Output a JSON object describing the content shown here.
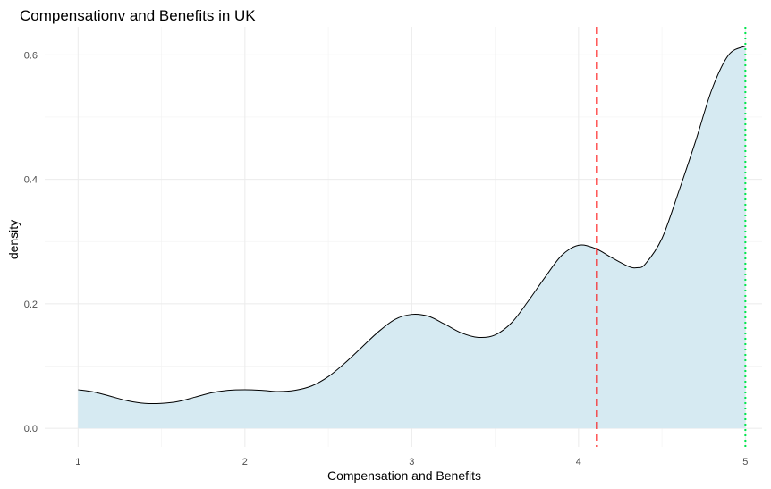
{
  "chart_data": {
    "type": "area",
    "title": "Compensationv and Benefits in  UK",
    "xlabel": "Compensation and Benefits",
    "ylabel": "density",
    "xlim": [
      0.8,
      5.1
    ],
    "ylim": [
      -0.03,
      0.645
    ],
    "x_ticks": [
      1,
      2,
      3,
      4,
      5
    ],
    "y_ticks": [
      0.0,
      0.2,
      0.4,
      0.6
    ],
    "x_tick_labels": [
      "1",
      "2",
      "3",
      "4",
      "5"
    ],
    "y_tick_labels": [
      "0.0",
      "0.2",
      "0.4",
      "0.6"
    ],
    "grid": true,
    "legend": "none",
    "series": [
      {
        "x": [
          1.0,
          1.1,
          1.2,
          1.3,
          1.4,
          1.5,
          1.6,
          1.7,
          1.8,
          1.9,
          2.0,
          2.1,
          2.2,
          2.3,
          2.4,
          2.5,
          2.6,
          2.7,
          2.8,
          2.9,
          3.0,
          3.1,
          3.2,
          3.3,
          3.4,
          3.5,
          3.6,
          3.7,
          3.8,
          3.9,
          4.0,
          4.1,
          4.2,
          4.3,
          4.35,
          4.4,
          4.5,
          4.6,
          4.7,
          4.8,
          4.9,
          5.0
        ],
        "y": [
          0.062,
          0.058,
          0.051,
          0.044,
          0.04,
          0.04,
          0.043,
          0.05,
          0.057,
          0.061,
          0.062,
          0.061,
          0.059,
          0.061,
          0.068,
          0.083,
          0.105,
          0.13,
          0.155,
          0.175,
          0.183,
          0.18,
          0.167,
          0.153,
          0.146,
          0.15,
          0.17,
          0.205,
          0.243,
          0.278,
          0.294,
          0.289,
          0.274,
          0.26,
          0.258,
          0.264,
          0.305,
          0.38,
          0.46,
          0.545,
          0.6,
          0.614
        ],
        "fill": "#d6eaf2",
        "line": "#000000"
      }
    ],
    "vlines": [
      {
        "x": 4.11,
        "color": "#ff0000",
        "style": "dashed"
      },
      {
        "x": 5.0,
        "color": "#00e64d",
        "style": "dotted"
      }
    ]
  }
}
